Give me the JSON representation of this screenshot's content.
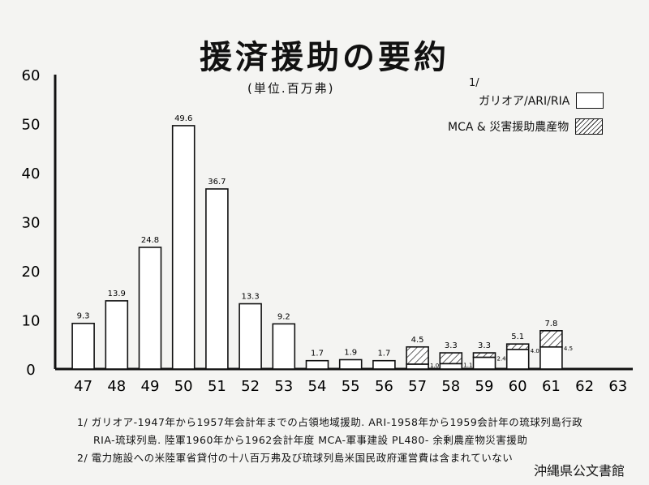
{
  "title": "援済援助の要約",
  "subtitle": "(単位.百万弗)",
  "legend": {
    "marker": "1/",
    "items": [
      {
        "label": "ガリオア/ARI/RIA",
        "hatched": false
      },
      {
        "label": "MCA & 災害援助農産物",
        "hatched": true
      }
    ]
  },
  "chart_data": {
    "type": "bar",
    "stacked": true,
    "categories": [
      "47",
      "48",
      "49",
      "50",
      "51",
      "52",
      "53",
      "54",
      "55",
      "56",
      "57",
      "58",
      "59",
      "60",
      "61",
      "62",
      "63"
    ],
    "series": [
      {
        "name": "ガリオア/ARI/RIA",
        "values": [
          9.3,
          13.9,
          24.8,
          49.6,
          36.7,
          13.3,
          9.2,
          1.7,
          1.9,
          1.7,
          1.0,
          1.1,
          2.4,
          4.0,
          4.5,
          0,
          0
        ]
      },
      {
        "name": "MCA & 災害援助農産物",
        "values": [
          0,
          0,
          0,
          0,
          0,
          0,
          0,
          0,
          0,
          0,
          3.5,
          2.2,
          0.9,
          1.1,
          3.3,
          0,
          0
        ]
      }
    ],
    "total_labels": [
      "9.3",
      "13.9",
      "24.8",
      "49.6",
      "36.7",
      "13.3",
      "9.2",
      "1.7",
      "1.9",
      "1.7",
      "4.5",
      "3.3",
      "3.3",
      "5.1",
      "7.8",
      "",
      ""
    ],
    "base_labels": [
      "",
      "",
      "",
      "",
      "",
      "",
      "",
      "",
      "",
      "",
      "1.0",
      "1.1",
      "2.4",
      "4.0",
      "4.5",
      "",
      ""
    ],
    "yticks": [
      "0",
      "10",
      "20",
      "30",
      "40",
      "50",
      "60"
    ],
    "ylim": [
      0,
      60
    ],
    "grid": false,
    "colors": {
      "bar_fill": "#ffffff",
      "stroke": "#111111",
      "hatch": "#333333"
    }
  },
  "notes": [
    "1/ ガリオア-1947年から1957年会計年までの占領地域援助. ARI-1958年から1959会計年の琉球列島行政",
    "RIA-琉球列島. 陸軍1960年から1962会計年度 MCA-軍事建設 PL480- 余剰農産物災害援助",
    "2/ 電力施設への米陸軍省貸付の十八百万弗及び琉球列島米国民政府運営費は含まれていない"
  ],
  "archive_label": "沖縄県公文書館"
}
